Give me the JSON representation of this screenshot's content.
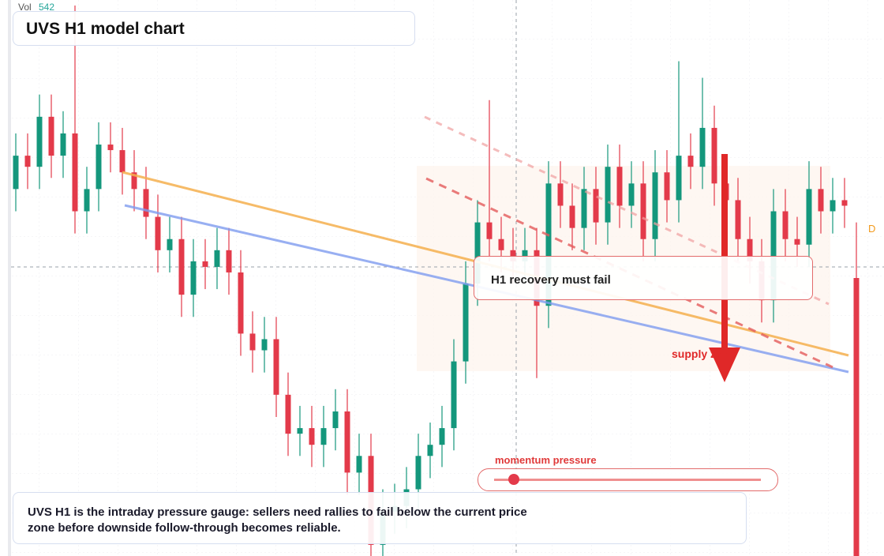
{
  "chart_data": {
    "type": "candlestick",
    "title": "UVS H1 model chart",
    "volume_label": "Vol",
    "volume_value": 542,
    "callout": "H1 recovery must fail",
    "zone_label": "supply zone",
    "gauge_label": "momentum pressure",
    "marker": "D",
    "description": "UVS H1 is the intraday pressure gauge: sellers need rallies to fail below the current price zone before downside follow-through becomes reliable.",
    "ylim": [
      0,
      100
    ],
    "up_color": "#14977c",
    "down_color": "#e33a4a",
    "open": [
      66,
      72,
      70,
      79,
      72,
      76,
      62,
      66,
      74,
      73,
      69,
      66,
      61,
      55,
      57,
      47,
      53,
      52,
      55,
      51,
      40,
      37,
      39,
      29,
      22,
      23,
      20,
      23,
      26,
      15,
      18,
      2,
      8,
      9,
      12,
      18,
      20,
      23,
      35,
      49,
      60,
      57,
      55,
      53,
      55,
      45,
      67,
      63,
      59,
      66,
      60,
      70,
      63,
      67,
      57,
      69,
      64,
      72,
      70,
      77,
      67,
      64,
      57,
      53,
      46,
      62,
      57,
      56,
      66,
      62,
      64,
      50
    ],
    "high": [
      76,
      76,
      83,
      83,
      80,
      99,
      70,
      78,
      78,
      77,
      73,
      70,
      65,
      61,
      61,
      57,
      57,
      59,
      59,
      55,
      44,
      43,
      43,
      33,
      27,
      27,
      27,
      30,
      30,
      22,
      22,
      12,
      13,
      16,
      22,
      24,
      27,
      39,
      53,
      64,
      82,
      61,
      59,
      59,
      59,
      71,
      71,
      67,
      70,
      70,
      74,
      74,
      71,
      71,
      73,
      73,
      89,
      76,
      86,
      81,
      71,
      68,
      61,
      57,
      66,
      66,
      61,
      71,
      70,
      68,
      68,
      60
    ],
    "low": [
      62,
      66,
      66,
      68,
      68,
      58,
      58,
      62,
      69,
      65,
      62,
      57,
      51,
      51,
      43,
      43,
      48,
      48,
      47,
      36,
      33,
      33,
      25,
      18,
      18,
      16,
      16,
      19,
      11,
      11,
      0,
      0,
      4,
      5,
      8,
      14,
      16,
      19,
      31,
      45,
      53,
      51,
      49,
      49,
      32,
      41,
      59,
      55,
      55,
      56,
      56,
      59,
      59,
      53,
      53,
      60,
      60,
      66,
      66,
      63,
      60,
      53,
      49,
      42,
      42,
      53,
      52,
      52,
      58,
      58,
      59,
      0
    ],
    "close": [
      72,
      70,
      79,
      72,
      76,
      62,
      66,
      74,
      73,
      69,
      66,
      61,
      55,
      57,
      47,
      53,
      52,
      55,
      51,
      40,
      37,
      39,
      29,
      22,
      23,
      20,
      23,
      26,
      15,
      18,
      2,
      8,
      9,
      12,
      18,
      20,
      23,
      35,
      49,
      60,
      57,
      55,
      53,
      55,
      45,
      67,
      63,
      59,
      66,
      60,
      70,
      63,
      67,
      57,
      69,
      64,
      72,
      70,
      77,
      67,
      64,
      57,
      53,
      46,
      62,
      57,
      56,
      66,
      62,
      64,
      63,
      0
    ]
  }
}
